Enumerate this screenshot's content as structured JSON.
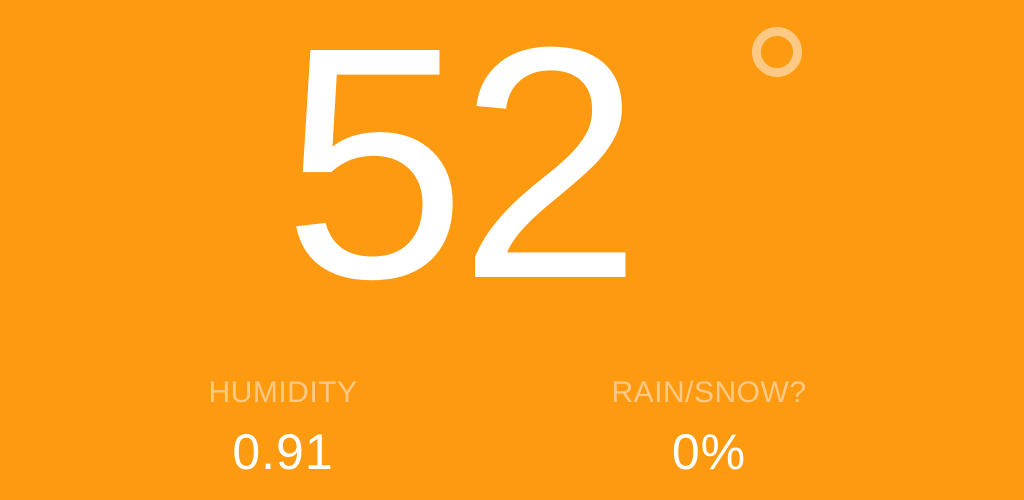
{
  "theme": {
    "background": "#FD9A10",
    "primary_text": "#FFFFFF",
    "secondary_text": "#FEC985"
  },
  "temperature": {
    "value": "52",
    "unit_icon": "degree-icon"
  },
  "stats": {
    "humidity": {
      "label": "HUMIDITY",
      "value": "0.91"
    },
    "precipitation": {
      "label": "RAIN/SNOW?",
      "value": "0%"
    }
  }
}
